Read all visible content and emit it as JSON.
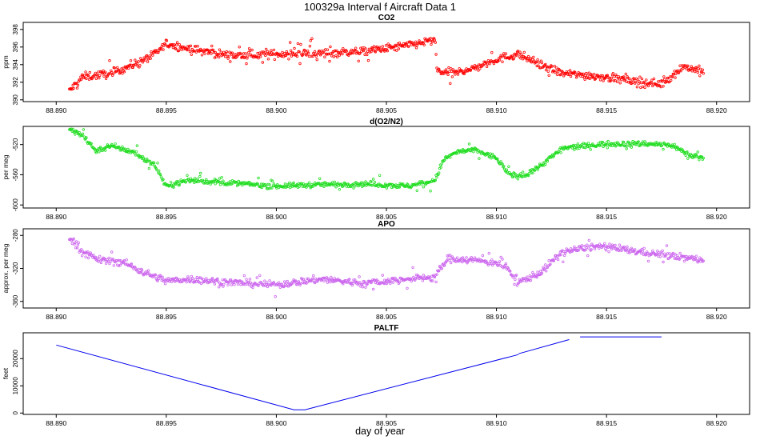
{
  "figure": {
    "title": "100329a   Interval f Aircraft Data 1",
    "xlabel": "day of year"
  },
  "chart_data": [
    {
      "type": "scatter",
      "title": "CO2",
      "ylabel": "ppm",
      "xlim": [
        88.8885,
        88.9215
      ],
      "ylim": [
        389.8,
        398.8
      ],
      "xticks": [
        88.89,
        88.895,
        88.9,
        88.905,
        88.91,
        88.915,
        88.92
      ],
      "xtick_labels": [
        "88.890",
        "88.895",
        "88.900",
        "88.905",
        "88.910",
        "88.915",
        "88.920"
      ],
      "yticks": [
        390,
        392,
        394,
        396,
        398
      ],
      "ytick_labels": [
        "390",
        "392",
        "394",
        "396",
        "398"
      ],
      "color": "#ff0000",
      "x_range": [
        88.8906,
        88.9194
      ],
      "trend": {
        "x": [
          88.8906,
          88.8912,
          88.8925,
          88.8935,
          88.8945,
          88.895,
          88.896,
          88.898,
          88.9,
          88.902,
          88.904,
          88.906,
          88.9072,
          88.9073,
          88.908,
          88.909,
          88.91,
          88.911,
          88.912,
          88.913,
          88.915,
          88.9165,
          88.9175,
          88.9185,
          88.9194
        ],
        "y": [
          391.0,
          392.6,
          393.0,
          394.0,
          395.2,
          396.4,
          395.8,
          395.0,
          395.2,
          395.3,
          395.5,
          396.2,
          396.8,
          393.3,
          393.0,
          393.6,
          394.6,
          395.2,
          394.0,
          393.0,
          392.6,
          392.0,
          391.8,
          393.8,
          393.2
        ]
      },
      "noise": 0.55,
      "points": 900
    },
    {
      "type": "scatter",
      "title": "d(O2/N2)",
      "ylabel": "per meg",
      "xlim": [
        88.8885,
        88.9215
      ],
      "ylim": [
        -604,
        -496
      ],
      "xticks": [
        88.89,
        88.895,
        88.9,
        88.905,
        88.91,
        88.915,
        88.92
      ],
      "xtick_labels": [
        "88.890",
        "88.895",
        "88.900",
        "88.905",
        "88.910",
        "88.915",
        "88.920"
      ],
      "yticks": [
        -600,
        -560,
        -520
      ],
      "ytick_labels": [
        "-600",
        "-560",
        "-520"
      ],
      "color": "#22dd22",
      "x_range": [
        88.8906,
        88.9194
      ],
      "trend": {
        "x": [
          88.8906,
          88.8912,
          88.8918,
          88.8925,
          88.8935,
          88.8945,
          88.895,
          88.896,
          88.898,
          88.9,
          88.902,
          88.904,
          88.906,
          88.9072,
          88.9076,
          88.9082,
          88.909,
          88.91,
          88.9106,
          88.9112,
          88.912,
          88.913,
          88.914,
          88.915,
          88.917,
          88.918,
          88.9187,
          88.9194
        ],
        "y": [
          -500,
          -508,
          -528,
          -522,
          -530,
          -548,
          -575,
          -567,
          -571,
          -575,
          -573,
          -572,
          -575,
          -568,
          -540,
          -530,
          -527,
          -538,
          -560,
          -562,
          -548,
          -525,
          -522,
          -519,
          -519,
          -521,
          -533,
          -538
        ]
      },
      "noise": 4,
      "points": 900
    },
    {
      "type": "scatter",
      "title": "APO",
      "ylabel": "approx. per meg",
      "xlim": [
        88.8885,
        88.9215
      ],
      "ylim": [
        -368,
        -272
      ],
      "xticks": [
        88.89,
        88.895,
        88.9,
        88.905,
        88.91,
        88.915,
        88.92
      ],
      "xtick_labels": [
        "88.890",
        "88.895",
        "88.900",
        "88.905",
        "88.910",
        "88.915",
        "88.920"
      ],
      "yticks": [
        -360,
        -320,
        -280
      ],
      "ytick_labels": [
        "-360",
        "-320",
        "-280"
      ],
      "color": "#cc66ee",
      "x_range": [
        88.8906,
        88.9194
      ],
      "trend": {
        "x": [
          88.8906,
          88.8912,
          88.892,
          88.893,
          88.894,
          88.895,
          88.896,
          88.898,
          88.9,
          88.902,
          88.904,
          88.906,
          88.9072,
          88.9078,
          88.909,
          88.91,
          88.9105,
          88.911,
          88.912,
          88.913,
          88.9145,
          88.916,
          88.918,
          88.9194
        ],
        "y": [
          -282,
          -300,
          -310,
          -312,
          -325,
          -335,
          -333,
          -337,
          -340,
          -333,
          -338,
          -333,
          -330,
          -308,
          -310,
          -313,
          -320,
          -337,
          -325,
          -300,
          -293,
          -298,
          -305,
          -310
        ]
      },
      "noise": 5,
      "points": 900
    },
    {
      "type": "line",
      "title": "PALTF",
      "ylabel": "feet",
      "xlim": [
        88.8885,
        88.9215
      ],
      "ylim": [
        -500,
        29500
      ],
      "xticks": [
        88.89,
        88.895,
        88.9,
        88.905,
        88.91,
        88.915,
        88.92
      ],
      "xtick_labels": [
        "88.890",
        "88.895",
        "88.900",
        "88.905",
        "88.910",
        "88.915",
        "88.920"
      ],
      "yticks": [
        0,
        10000,
        20000
      ],
      "ytick_labels": [
        "0",
        "10000",
        "20000"
      ],
      "color": "#0000ee",
      "segments": [
        {
          "x": [
            88.89,
            88.9008,
            88.9013,
            88.911
          ],
          "y": [
            25000,
            1200,
            1200,
            21500
          ]
        },
        {
          "x": [
            88.911,
            88.9133
          ],
          "y": [
            21800,
            27000
          ]
        },
        {
          "x": [
            88.9138,
            88.9175
          ],
          "y": [
            28000,
            28000
          ]
        }
      ]
    }
  ]
}
